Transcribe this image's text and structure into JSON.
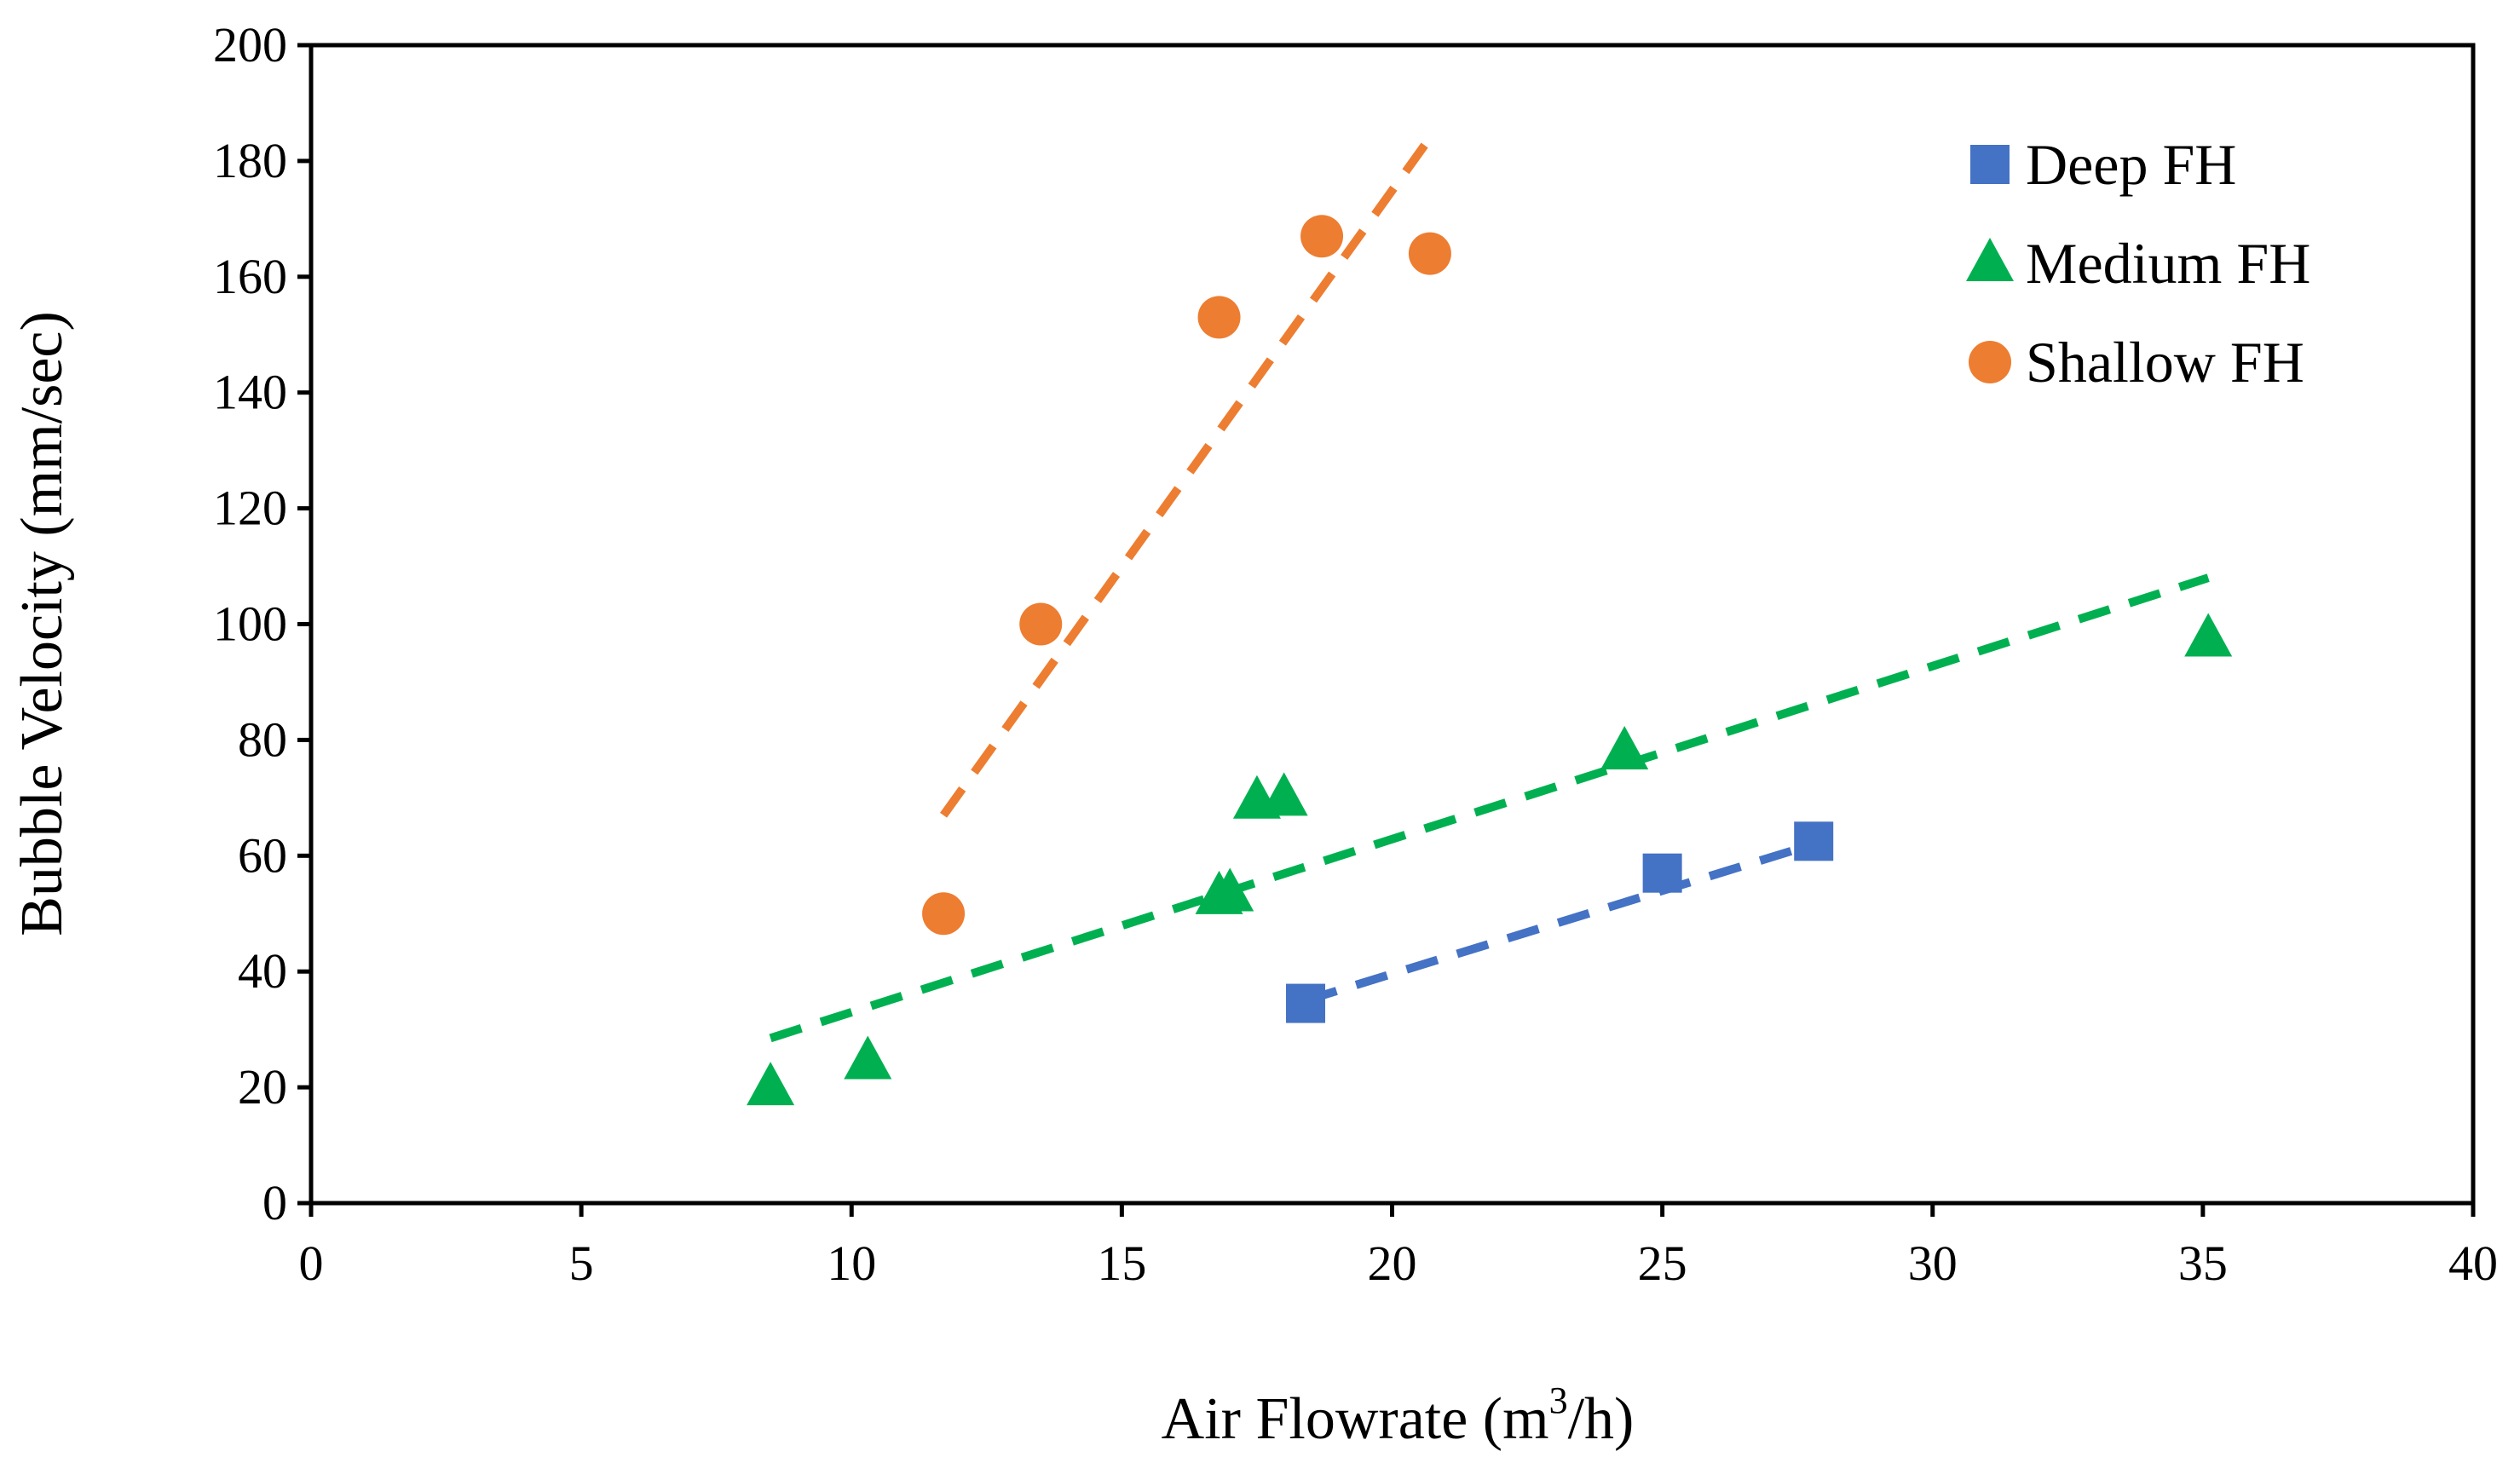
{
  "chart_data": {
    "type": "scatter",
    "title": "",
    "xlabel": "Air Flowrate (m³/h)",
    "xlabel_parts": {
      "pre": "Air Flowrate (m",
      "sup": "3",
      "post": "/h)"
    },
    "ylabel": "Bubble Velocity (mm/sec)",
    "xlim": [
      0,
      40
    ],
    "ylim": [
      0,
      200
    ],
    "xticks": [
      0,
      5,
      10,
      15,
      20,
      25,
      30,
      35,
      40
    ],
    "yticks": [
      0,
      20,
      40,
      60,
      80,
      100,
      120,
      140,
      160,
      180,
      200
    ],
    "grid": false,
    "legend_position": "top-right",
    "series": [
      {
        "name": "Deep FH",
        "marker": "square",
        "color": "#4472C4",
        "x": [
          18.4,
          25.0,
          27.8
        ],
        "y": [
          34.5,
          57,
          62.5
        ],
        "trendline": {
          "x": [
            18.4,
            27.8
          ],
          "y": [
            35,
            62
          ]
        }
      },
      {
        "name": "Medium FH",
        "marker": "triangle",
        "color": "#00B050",
        "x": [
          8.5,
          10.3,
          16.8,
          17.0,
          17.5,
          18.0,
          24.3,
          35.1
        ],
        "y": [
          20,
          24.5,
          53,
          53.5,
          69.5,
          70,
          78,
          97.5
        ],
        "trendline": {
          "x": [
            8.5,
            35.1
          ],
          "y": [
            28.5,
            108
          ]
        }
      },
      {
        "name": "Shallow FH",
        "marker": "circle",
        "color": "#ED7D31",
        "x": [
          11.7,
          13.5,
          16.8,
          18.7,
          20.7
        ],
        "y": [
          50,
          100,
          153,
          167,
          164
        ],
        "trendline": {
          "x": [
            11.7,
            20.7
          ],
          "y": [
            67,
            184
          ]
        }
      }
    ]
  }
}
